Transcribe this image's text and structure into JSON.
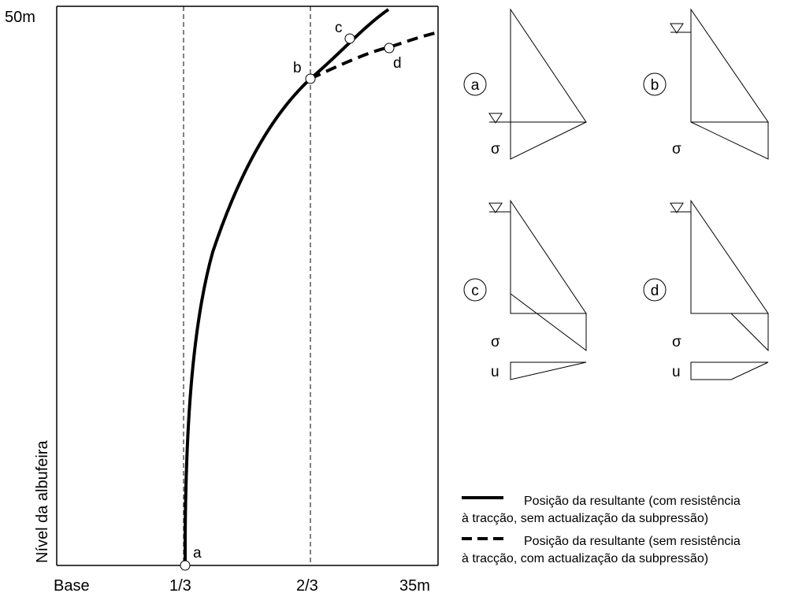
{
  "main_plot": {
    "y_top_label": "50m",
    "y_axis_label": "Nível da albufeira",
    "x_ticks": [
      "Base",
      "1/3",
      "2/3",
      "35m"
    ],
    "points": {
      "a": "a",
      "b": "b",
      "c": "c",
      "d": "d"
    }
  },
  "stress_diagrams": {
    "sigma": "σ",
    "u": "u",
    "panels": [
      {
        "id": "a",
        "label": "a"
      },
      {
        "id": "b",
        "label": "b"
      },
      {
        "id": "c",
        "label": "c"
      },
      {
        "id": "d",
        "label": "d"
      }
    ]
  },
  "legend": {
    "solid_line1": "Posição da resultante (com resistência",
    "solid_line2": "à tracção, sem actualização da subpressão)",
    "dashed_line1": "Posição da resultante (sem resistência",
    "dashed_line2": "à tracção, com actualização da subpressão)"
  }
}
